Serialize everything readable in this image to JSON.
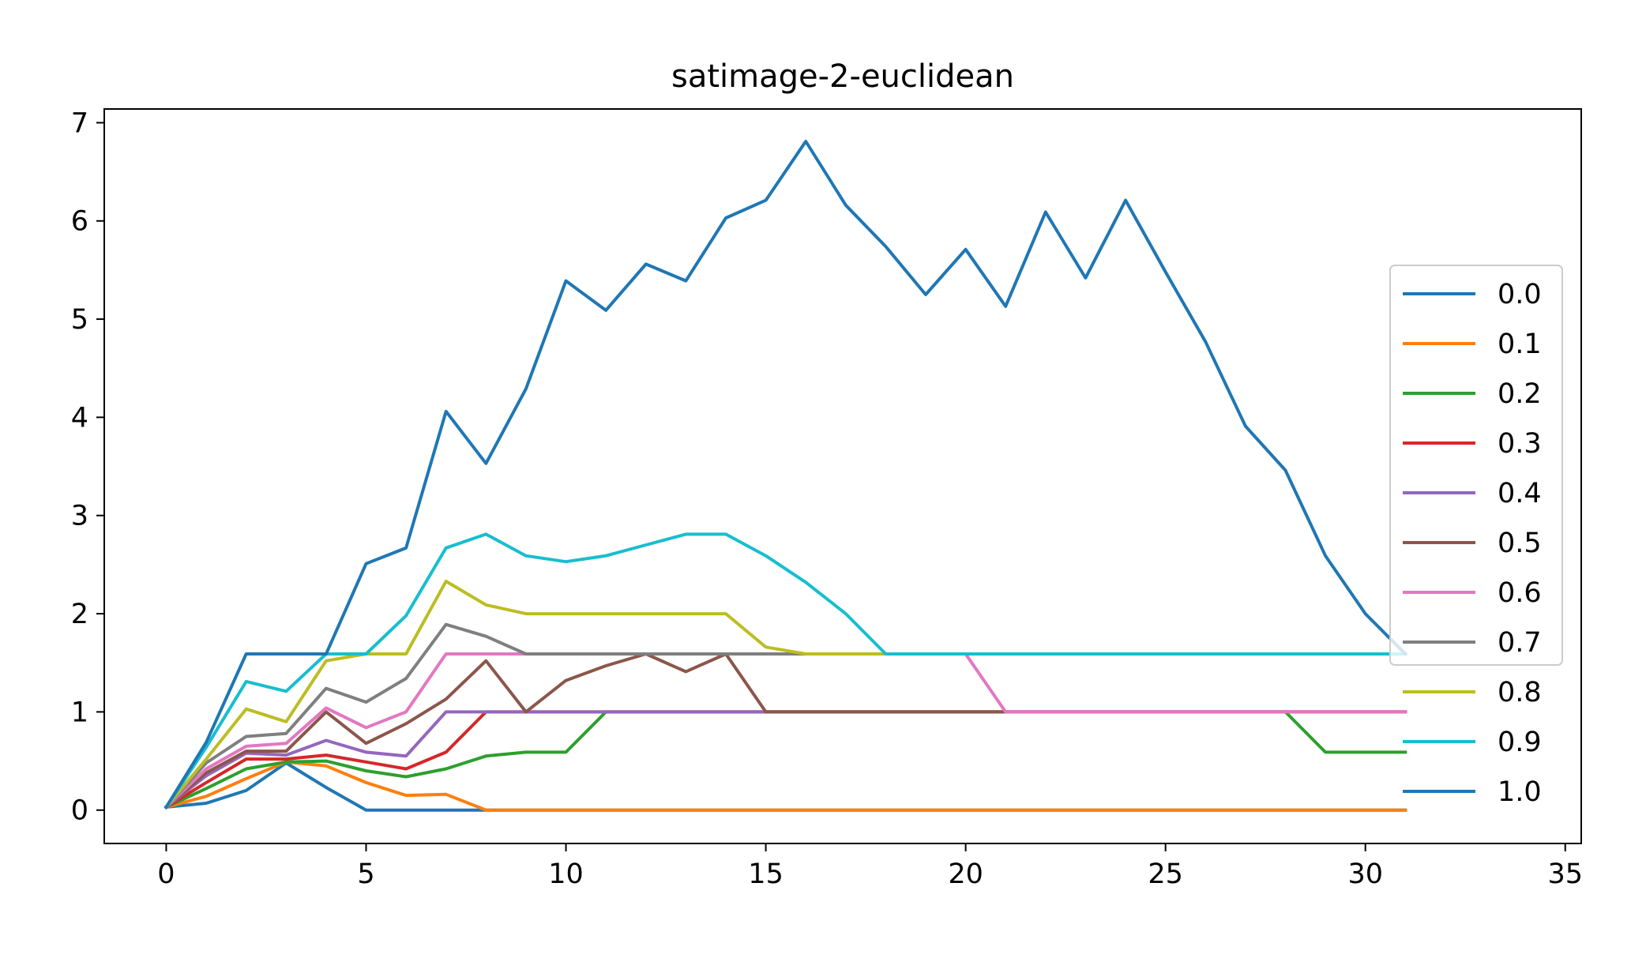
{
  "chart_data": {
    "type": "line",
    "title": "satimage-2-euclidean",
    "xlabel": "",
    "ylabel": "",
    "xlim": [
      -1.55,
      35.4
    ],
    "ylim": [
      -0.34,
      7.14
    ],
    "x_ticks": [
      0,
      5,
      10,
      15,
      20,
      25,
      30,
      35
    ],
    "y_ticks": [
      0,
      1,
      2,
      3,
      4,
      5,
      6,
      7
    ],
    "grid": false,
    "legend_position": "center-right",
    "series": [
      {
        "name": "0.0",
        "color": "#1f77b4",
        "values": [
          0.03,
          0.07,
          0.2,
          0.48,
          0.23,
          0.0,
          0.0,
          0.0,
          0.0,
          0.0,
          0.0,
          0.0,
          0.0,
          0.0,
          0.0,
          0.0,
          0.0,
          0.0,
          0.0,
          0.0,
          0.0,
          0.0,
          0.0,
          0.0,
          0.0,
          0.0,
          0.0,
          0.0,
          0.0,
          0.0,
          0.0,
          0.0
        ]
      },
      {
        "name": "0.1",
        "color": "#ff7f0e",
        "values": [
          0.03,
          0.14,
          0.32,
          0.49,
          0.45,
          0.28,
          0.15,
          0.16,
          0.0,
          0.0,
          0.0,
          0.0,
          0.0,
          0.0,
          0.0,
          0.0,
          0.0,
          0.0,
          0.0,
          0.0,
          0.0,
          0.0,
          0.0,
          0.0,
          0.0,
          0.0,
          0.0,
          0.0,
          0.0,
          0.0,
          0.0,
          0.0
        ]
      },
      {
        "name": "0.2",
        "color": "#2ca02c",
        "values": [
          0.03,
          0.22,
          0.42,
          0.49,
          0.5,
          0.4,
          0.34,
          0.42,
          0.55,
          0.59,
          0.59,
          1.0,
          1.0,
          1.0,
          1.0,
          1.0,
          1.0,
          1.0,
          1.0,
          1.0,
          1.0,
          1.0,
          1.0,
          1.0,
          1.0,
          1.0,
          1.0,
          1.0,
          1.0,
          0.59,
          0.59,
          0.59
        ]
      },
      {
        "name": "0.3",
        "color": "#d62728",
        "values": [
          0.03,
          0.28,
          0.52,
          0.52,
          0.56,
          0.49,
          0.42,
          0.59,
          1.0,
          1.0,
          1.0,
          1.0,
          1.0,
          1.0,
          1.0,
          1.0,
          1.0,
          1.0,
          1.0,
          1.0,
          1.0,
          1.0,
          1.0,
          1.0,
          1.0,
          1.0,
          1.0,
          1.0,
          1.0,
          1.0,
          1.0,
          1.0
        ]
      },
      {
        "name": "0.4",
        "color": "#9467bd",
        "values": [
          0.03,
          0.35,
          0.58,
          0.56,
          0.71,
          0.59,
          0.55,
          1.0,
          1.0,
          1.0,
          1.0,
          1.0,
          1.0,
          1.0,
          1.0,
          1.0,
          1.0,
          1.0,
          1.0,
          1.0,
          1.0,
          1.0,
          1.0,
          1.0,
          1.0,
          1.0,
          1.0,
          1.0,
          1.0,
          1.0,
          1.0,
          1.0
        ]
      },
      {
        "name": "0.5",
        "color": "#8c564b",
        "values": [
          0.03,
          0.38,
          0.6,
          0.6,
          1.0,
          0.68,
          0.88,
          1.13,
          1.52,
          1.0,
          1.32,
          1.47,
          1.59,
          1.41,
          1.59,
          1.0,
          1.0,
          1.0,
          1.0,
          1.0,
          1.0,
          1.0,
          1.0,
          1.0,
          1.0,
          1.0,
          1.0,
          1.0,
          1.0,
          1.0,
          1.0,
          1.0
        ]
      },
      {
        "name": "0.6",
        "color": "#e377c2",
        "values": [
          0.03,
          0.42,
          0.65,
          0.68,
          1.04,
          0.84,
          1.0,
          1.59,
          1.59,
          1.59,
          1.59,
          1.59,
          1.59,
          1.59,
          1.59,
          1.59,
          1.59,
          1.59,
          1.59,
          1.59,
          1.59,
          1.0,
          1.0,
          1.0,
          1.0,
          1.0,
          1.0,
          1.0,
          1.0,
          1.0,
          1.0,
          1.0
        ]
      },
      {
        "name": "0.7",
        "color": "#7f7f7f",
        "values": [
          0.03,
          0.48,
          0.75,
          0.78,
          1.24,
          1.1,
          1.34,
          1.89,
          1.77,
          1.59,
          1.59,
          1.59,
          1.59,
          1.59,
          1.59,
          1.59,
          1.59,
          1.59,
          1.59,
          1.59,
          1.59,
          1.59,
          1.59,
          1.59,
          1.59,
          1.59,
          1.59,
          1.59,
          1.59,
          1.59,
          1.59,
          1.59
        ]
      },
      {
        "name": "0.8",
        "color": "#bcbd22",
        "values": [
          0.03,
          0.52,
          1.03,
          0.9,
          1.52,
          1.59,
          1.59,
          2.33,
          2.09,
          2.0,
          2.0,
          2.0,
          2.0,
          2.0,
          2.0,
          1.66,
          1.59,
          1.59,
          1.59,
          1.59,
          1.59,
          1.59,
          1.59,
          1.59,
          1.59,
          1.59,
          1.59,
          1.59,
          1.59,
          1.59,
          1.59,
          1.59
        ]
      },
      {
        "name": "0.9",
        "color": "#17becf",
        "values": [
          0.03,
          0.64,
          1.31,
          1.21,
          1.59,
          1.59,
          1.98,
          2.67,
          2.81,
          2.59,
          2.53,
          2.59,
          2.7,
          2.81,
          2.81,
          2.59,
          2.32,
          2.0,
          1.59,
          1.59,
          1.59,
          1.59,
          1.59,
          1.59,
          1.59,
          1.59,
          1.59,
          1.59,
          1.59,
          1.59,
          1.59,
          1.59
        ]
      },
      {
        "name": "1.0",
        "color": "#1f77b4",
        "values": [
          0.03,
          0.69,
          1.59,
          1.59,
          1.59,
          2.51,
          2.67,
          4.06,
          3.53,
          4.29,
          5.39,
          5.09,
          5.56,
          5.39,
          6.03,
          6.21,
          6.81,
          6.16,
          5.74,
          5.25,
          5.71,
          5.13,
          6.09,
          5.42,
          6.21,
          5.48,
          4.77,
          3.91,
          3.46,
          2.59,
          2.0,
          1.59
        ]
      }
    ]
  }
}
